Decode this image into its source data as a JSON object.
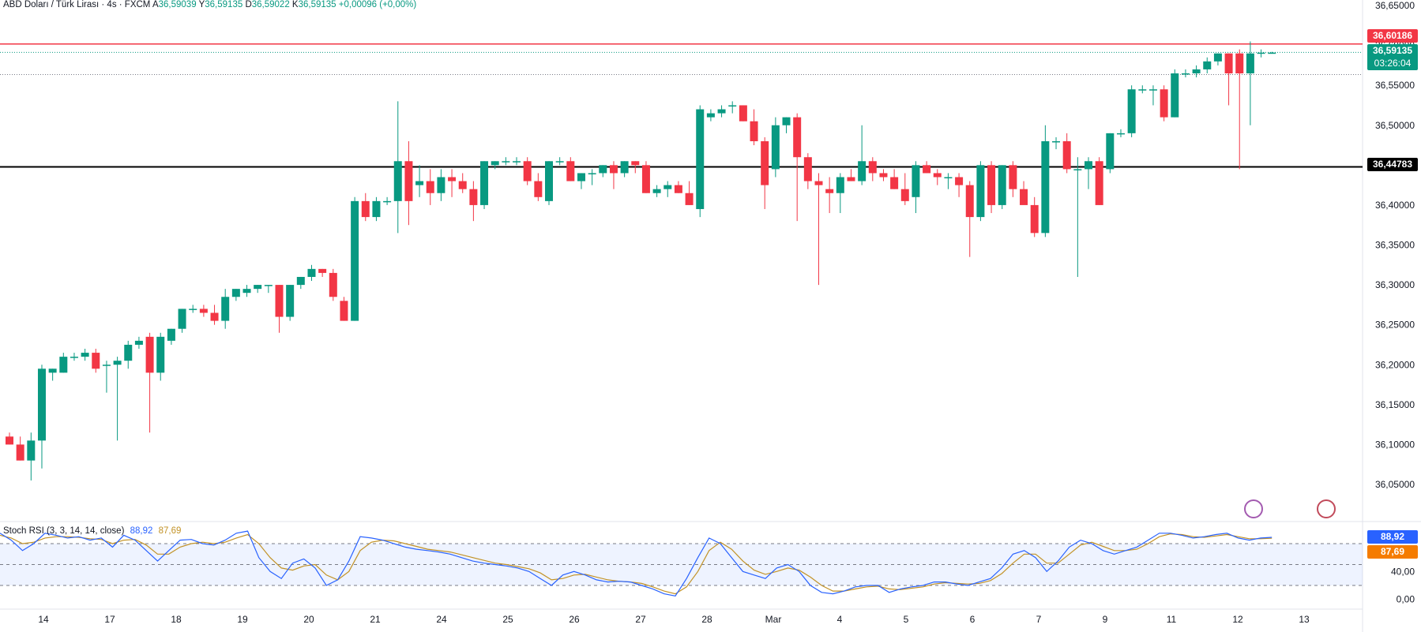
{
  "header": {
    "symbol": "ABD Doları / Türk Lirası · 4s · FXCM",
    "open_label": "A",
    "open": "36,59039",
    "high_label": "Y",
    "high": "36,59135",
    "low_label": "D",
    "low": "36,59022",
    "close_label": "K",
    "close": "36,59135",
    "change": "+0,00096 (+0,00%)"
  },
  "price_axis": {
    "ticks": [
      "36,65000",
      "36,60000",
      "36,55000",
      "36,50000",
      "36,45000",
      "36,40000",
      "36,35000",
      "36,30000",
      "36,25000",
      "36,20000",
      "36,15000",
      "36,10000",
      "36,05000"
    ],
    "red_line_label": "36,60186",
    "last_price_label": "36,59135",
    "countdown": "03:26:04",
    "black_line_label": "36,44783",
    "colors": {
      "up": "#089981",
      "down": "#f23645",
      "red_line": "#f23645",
      "black_line": "#000000"
    }
  },
  "rsi": {
    "title": "Stoch RSI (3, 3, 14, 14, close)",
    "k_value": "88,92",
    "d_value": "87,69",
    "axis_ticks": [
      "40,00",
      "0,00"
    ],
    "k_color": "#2962ff",
    "d_color": "#c29226"
  },
  "time_axis": {
    "labels": [
      "14",
      "17",
      "18",
      "19",
      "20",
      "21",
      "24",
      "25",
      "26",
      "27",
      "28",
      "Mar",
      "4",
      "5",
      "6",
      "7",
      "9",
      "11",
      "12",
      "13"
    ]
  },
  "chart_data": {
    "type": "candlestick",
    "title": "ABD Doları / Türk Lirası · 4s · FXCM",
    "ylim": [
      36.02,
      36.65
    ],
    "hlines": [
      36.60186,
      36.44783
    ],
    "candles": [
      {
        "o": 36.11,
        "h": 36.115,
        "l": 36.1,
        "c": 36.1
      },
      {
        "o": 36.1,
        "h": 36.11,
        "l": 36.08,
        "c": 36.08
      },
      {
        "o": 36.08,
        "h": 36.115,
        "l": 36.055,
        "c": 36.105
      },
      {
        "o": 36.105,
        "h": 36.2,
        "l": 36.07,
        "c": 36.195
      },
      {
        "o": 36.19,
        "h": 36.195,
        "l": 36.18,
        "c": 36.195
      },
      {
        "o": 36.19,
        "h": 36.215,
        "l": 36.19,
        "c": 36.21
      },
      {
        "o": 36.21,
        "h": 36.215,
        "l": 36.205,
        "c": 36.21
      },
      {
        "o": 36.21,
        "h": 36.22,
        "l": 36.205,
        "c": 36.215
      },
      {
        "o": 36.215,
        "h": 36.22,
        "l": 36.19,
        "c": 36.195
      },
      {
        "o": 36.2,
        "h": 36.205,
        "l": 36.165,
        "c": 36.2
      },
      {
        "o": 36.2,
        "h": 36.21,
        "l": 36.105,
        "c": 36.205
      },
      {
        "o": 36.205,
        "h": 36.23,
        "l": 36.195,
        "c": 36.225
      },
      {
        "o": 36.225,
        "h": 36.235,
        "l": 36.22,
        "c": 36.23
      },
      {
        "o": 36.235,
        "h": 36.24,
        "l": 36.115,
        "c": 36.19
      },
      {
        "o": 36.19,
        "h": 36.24,
        "l": 36.18,
        "c": 36.235
      },
      {
        "o": 36.23,
        "h": 36.245,
        "l": 36.225,
        "c": 36.245
      },
      {
        "o": 36.245,
        "h": 36.27,
        "l": 36.24,
        "c": 36.27
      },
      {
        "o": 36.27,
        "h": 36.275,
        "l": 36.265,
        "c": 36.27
      },
      {
        "o": 36.27,
        "h": 36.275,
        "l": 36.26,
        "c": 36.265
      },
      {
        "o": 36.265,
        "h": 36.275,
        "l": 36.25,
        "c": 36.255
      },
      {
        "o": 36.255,
        "h": 36.295,
        "l": 36.245,
        "c": 36.285
      },
      {
        "o": 36.285,
        "h": 36.295,
        "l": 36.28,
        "c": 36.295
      },
      {
        "o": 36.29,
        "h": 36.3,
        "l": 36.285,
        "c": 36.295
      },
      {
        "o": 36.295,
        "h": 36.3,
        "l": 36.29,
        "c": 36.3
      },
      {
        "o": 36.3,
        "h": 36.3,
        "l": 36.29,
        "c": 36.3
      },
      {
        "o": 36.3,
        "h": 36.3,
        "l": 36.24,
        "c": 36.26
      },
      {
        "o": 36.26,
        "h": 36.3,
        "l": 36.255,
        "c": 36.3
      },
      {
        "o": 36.3,
        "h": 36.31,
        "l": 36.295,
        "c": 36.31
      },
      {
        "o": 36.31,
        "h": 36.325,
        "l": 36.305,
        "c": 36.32
      },
      {
        "o": 36.32,
        "h": 36.32,
        "l": 36.31,
        "c": 36.315
      },
      {
        "o": 36.315,
        "h": 36.32,
        "l": 36.28,
        "c": 36.285
      },
      {
        "o": 36.28,
        "h": 36.285,
        "l": 36.255,
        "c": 36.255
      },
      {
        "o": 36.255,
        "h": 36.41,
        "l": 36.255,
        "c": 36.405
      },
      {
        "o": 36.405,
        "h": 36.415,
        "l": 36.38,
        "c": 36.385
      },
      {
        "o": 36.385,
        "h": 36.41,
        "l": 36.38,
        "c": 36.405
      },
      {
        "o": 36.405,
        "h": 36.41,
        "l": 36.4,
        "c": 36.405
      },
      {
        "o": 36.405,
        "h": 36.53,
        "l": 36.365,
        "c": 36.455
      },
      {
        "o": 36.455,
        "h": 36.48,
        "l": 36.375,
        "c": 36.405
      },
      {
        "o": 36.425,
        "h": 36.45,
        "l": 36.41,
        "c": 36.43
      },
      {
        "o": 36.43,
        "h": 36.445,
        "l": 36.4,
        "c": 36.415
      },
      {
        "o": 36.415,
        "h": 36.445,
        "l": 36.405,
        "c": 36.435
      },
      {
        "o": 36.435,
        "h": 36.445,
        "l": 36.41,
        "c": 36.43
      },
      {
        "o": 36.43,
        "h": 36.44,
        "l": 36.415,
        "c": 36.42
      },
      {
        "o": 36.42,
        "h": 36.43,
        "l": 36.38,
        "c": 36.4
      },
      {
        "o": 36.4,
        "h": 36.455,
        "l": 36.395,
        "c": 36.455
      },
      {
        "o": 36.45,
        "h": 36.455,
        "l": 36.445,
        "c": 36.455
      },
      {
        "o": 36.455,
        "h": 36.46,
        "l": 36.45,
        "c": 36.455
      },
      {
        "o": 36.455,
        "h": 36.46,
        "l": 36.45,
        "c": 36.455
      },
      {
        "o": 36.455,
        "h": 36.46,
        "l": 36.425,
        "c": 36.43
      },
      {
        "o": 36.43,
        "h": 36.44,
        "l": 36.405,
        "c": 36.41
      },
      {
        "o": 36.405,
        "h": 36.455,
        "l": 36.4,
        "c": 36.455
      },
      {
        "o": 36.455,
        "h": 36.46,
        "l": 36.45,
        "c": 36.455
      },
      {
        "o": 36.455,
        "h": 36.46,
        "l": 36.43,
        "c": 36.43
      },
      {
        "o": 36.43,
        "h": 36.44,
        "l": 36.42,
        "c": 36.44
      },
      {
        "o": 36.44,
        "h": 36.445,
        "l": 36.425,
        "c": 36.44
      },
      {
        "o": 36.44,
        "h": 36.45,
        "l": 36.435,
        "c": 36.45
      },
      {
        "o": 36.45,
        "h": 36.455,
        "l": 36.42,
        "c": 36.44
      },
      {
        "o": 36.44,
        "h": 36.455,
        "l": 36.435,
        "c": 36.455
      },
      {
        "o": 36.455,
        "h": 36.455,
        "l": 36.44,
        "c": 36.45
      },
      {
        "o": 36.45,
        "h": 36.455,
        "l": 36.415,
        "c": 36.415
      },
      {
        "o": 36.415,
        "h": 36.425,
        "l": 36.41,
        "c": 36.42
      },
      {
        "o": 36.42,
        "h": 36.43,
        "l": 36.41,
        "c": 36.425
      },
      {
        "o": 36.425,
        "h": 36.43,
        "l": 36.415,
        "c": 36.415
      },
      {
        "o": 36.415,
        "h": 36.43,
        "l": 36.4,
        "c": 36.4
      },
      {
        "o": 36.395,
        "h": 36.525,
        "l": 36.385,
        "c": 36.52
      },
      {
        "o": 36.51,
        "h": 36.52,
        "l": 36.505,
        "c": 36.515
      },
      {
        "o": 36.515,
        "h": 36.525,
        "l": 36.51,
        "c": 36.52
      },
      {
        "o": 36.525,
        "h": 36.53,
        "l": 36.515,
        "c": 36.525
      },
      {
        "o": 36.525,
        "h": 36.525,
        "l": 36.505,
        "c": 36.505
      },
      {
        "o": 36.505,
        "h": 36.52,
        "l": 36.475,
        "c": 36.48
      },
      {
        "o": 36.48,
        "h": 36.485,
        "l": 36.395,
        "c": 36.425
      },
      {
        "o": 36.445,
        "h": 36.51,
        "l": 36.435,
        "c": 36.5
      },
      {
        "o": 36.5,
        "h": 36.51,
        "l": 36.49,
        "c": 36.51
      },
      {
        "o": 36.51,
        "h": 36.515,
        "l": 36.38,
        "c": 36.46
      },
      {
        "o": 36.46,
        "h": 36.465,
        "l": 36.42,
        "c": 36.43
      },
      {
        "o": 36.43,
        "h": 36.44,
        "l": 36.3,
        "c": 36.425
      },
      {
        "o": 36.42,
        "h": 36.435,
        "l": 36.39,
        "c": 36.415
      },
      {
        "o": 36.415,
        "h": 36.44,
        "l": 36.39,
        "c": 36.435
      },
      {
        "o": 36.435,
        "h": 36.445,
        "l": 36.43,
        "c": 36.43
      },
      {
        "o": 36.43,
        "h": 36.5,
        "l": 36.425,
        "c": 36.455
      },
      {
        "o": 36.455,
        "h": 36.46,
        "l": 36.43,
        "c": 36.44
      },
      {
        "o": 36.44,
        "h": 36.445,
        "l": 36.43,
        "c": 36.435
      },
      {
        "o": 36.435,
        "h": 36.445,
        "l": 36.42,
        "c": 36.42
      },
      {
        "o": 36.42,
        "h": 36.44,
        "l": 36.4,
        "c": 36.405
      },
      {
        "o": 36.41,
        "h": 36.455,
        "l": 36.39,
        "c": 36.45
      },
      {
        "o": 36.45,
        "h": 36.455,
        "l": 36.44,
        "c": 36.44
      },
      {
        "o": 36.44,
        "h": 36.445,
        "l": 36.425,
        "c": 36.435
      },
      {
        "o": 36.435,
        "h": 36.44,
        "l": 36.42,
        "c": 36.435
      },
      {
        "o": 36.435,
        "h": 36.44,
        "l": 36.41,
        "c": 36.425
      },
      {
        "o": 36.425,
        "h": 36.43,
        "l": 36.335,
        "c": 36.385
      },
      {
        "o": 36.385,
        "h": 36.455,
        "l": 36.38,
        "c": 36.45
      },
      {
        "o": 36.45,
        "h": 36.455,
        "l": 36.39,
        "c": 36.4
      },
      {
        "o": 36.4,
        "h": 36.45,
        "l": 36.395,
        "c": 36.45
      },
      {
        "o": 36.45,
        "h": 36.455,
        "l": 36.41,
        "c": 36.42
      },
      {
        "o": 36.42,
        "h": 36.43,
        "l": 36.405,
        "c": 36.4
      },
      {
        "o": 36.4,
        "h": 36.41,
        "l": 36.36,
        "c": 36.365
      },
      {
        "o": 36.365,
        "h": 36.5,
        "l": 36.36,
        "c": 36.48
      },
      {
        "o": 36.48,
        "h": 36.485,
        "l": 36.47,
        "c": 36.48
      },
      {
        "o": 36.48,
        "h": 36.49,
        "l": 36.44,
        "c": 36.445
      },
      {
        "o": 36.445,
        "h": 36.46,
        "l": 36.31,
        "c": 36.445
      },
      {
        "o": 36.445,
        "h": 36.46,
        "l": 36.42,
        "c": 36.455
      },
      {
        "o": 36.455,
        "h": 36.46,
        "l": 36.4,
        "c": 36.4
      },
      {
        "o": 36.445,
        "h": 36.49,
        "l": 36.44,
        "c": 36.49
      },
      {
        "o": 36.49,
        "h": 36.495,
        "l": 36.485,
        "c": 36.49
      },
      {
        "o": 36.49,
        "h": 36.55,
        "l": 36.485,
        "c": 36.545
      },
      {
        "o": 36.545,
        "h": 36.55,
        "l": 36.54,
        "c": 36.545
      },
      {
        "o": 36.545,
        "h": 36.55,
        "l": 36.525,
        "c": 36.545
      },
      {
        "o": 36.545,
        "h": 36.55,
        "l": 36.505,
        "c": 36.51
      },
      {
        "o": 36.51,
        "h": 36.57,
        "l": 36.51,
        "c": 36.565
      },
      {
        "o": 36.565,
        "h": 36.57,
        "l": 36.56,
        "c": 36.565
      },
      {
        "o": 36.565,
        "h": 36.575,
        "l": 36.56,
        "c": 36.57
      },
      {
        "o": 36.57,
        "h": 36.585,
        "l": 36.565,
        "c": 36.58
      },
      {
        "o": 36.58,
        "h": 36.59,
        "l": 36.575,
        "c": 36.59
      },
      {
        "o": 36.59,
        "h": 36.59,
        "l": 36.525,
        "c": 36.565
      },
      {
        "o": 36.59,
        "h": 36.595,
        "l": 36.445,
        "c": 36.565
      },
      {
        "o": 36.565,
        "h": 36.605,
        "l": 36.5,
        "c": 36.59
      },
      {
        "o": 36.59,
        "h": 36.595,
        "l": 36.585,
        "c": 36.591
      },
      {
        "o": 36.591,
        "h": 36.592,
        "l": 36.59,
        "c": 36.591
      }
    ],
    "stoch_rsi": {
      "ylim": [
        0,
        100
      ],
      "bands": [
        80,
        50,
        20
      ],
      "k": [
        95,
        85,
        70,
        80,
        95,
        92,
        88,
        90,
        85,
        88,
        75,
        92,
        85,
        70,
        55,
        70,
        85,
        86,
        80,
        78,
        85,
        95,
        98,
        60,
        40,
        30,
        52,
        58,
        45,
        20,
        28,
        55,
        90,
        88,
        85,
        80,
        75,
        72,
        70,
        68,
        65,
        60,
        55,
        52,
        50,
        48,
        45,
        40,
        30,
        20,
        35,
        40,
        35,
        28,
        25,
        26,
        25,
        20,
        15,
        8,
        5,
        30,
        60,
        88,
        80,
        60,
        40,
        35,
        30,
        45,
        50,
        40,
        20,
        10,
        8,
        12,
        18,
        20,
        20,
        10,
        15,
        18,
        20,
        25,
        25,
        22,
        20,
        25,
        30,
        45,
        65,
        70,
        60,
        40,
        55,
        75,
        85,
        80,
        70,
        65,
        70,
        75,
        85,
        95,
        95,
        92,
        88,
        90,
        93,
        95,
        88,
        85,
        88,
        89
      ],
      "d": [
        92,
        88,
        80,
        82,
        88,
        90,
        90,
        89,
        87,
        86,
        80,
        85,
        86,
        78,
        65,
        65,
        75,
        80,
        82,
        80,
        82,
        88,
        93,
        80,
        60,
        45,
        42,
        48,
        50,
        35,
        28,
        40,
        70,
        82,
        85,
        84,
        80,
        76,
        72,
        70,
        68,
        64,
        60,
        56,
        52,
        50,
        47,
        44,
        38,
        28,
        30,
        35,
        36,
        32,
        28,
        26,
        25,
        23,
        18,
        12,
        8,
        18,
        40,
        70,
        82,
        72,
        55,
        42,
        36,
        40,
        45,
        42,
        32,
        20,
        12,
        12,
        15,
        18,
        19,
        15,
        14,
        16,
        18,
        22,
        24,
        23,
        22,
        23,
        27,
        37,
        52,
        65,
        65,
        52,
        52,
        65,
        78,
        82,
        76,
        70,
        70,
        72,
        80,
        90,
        94,
        93,
        90,
        89,
        91,
        93,
        90,
        87,
        87,
        87.69
      ]
    }
  }
}
